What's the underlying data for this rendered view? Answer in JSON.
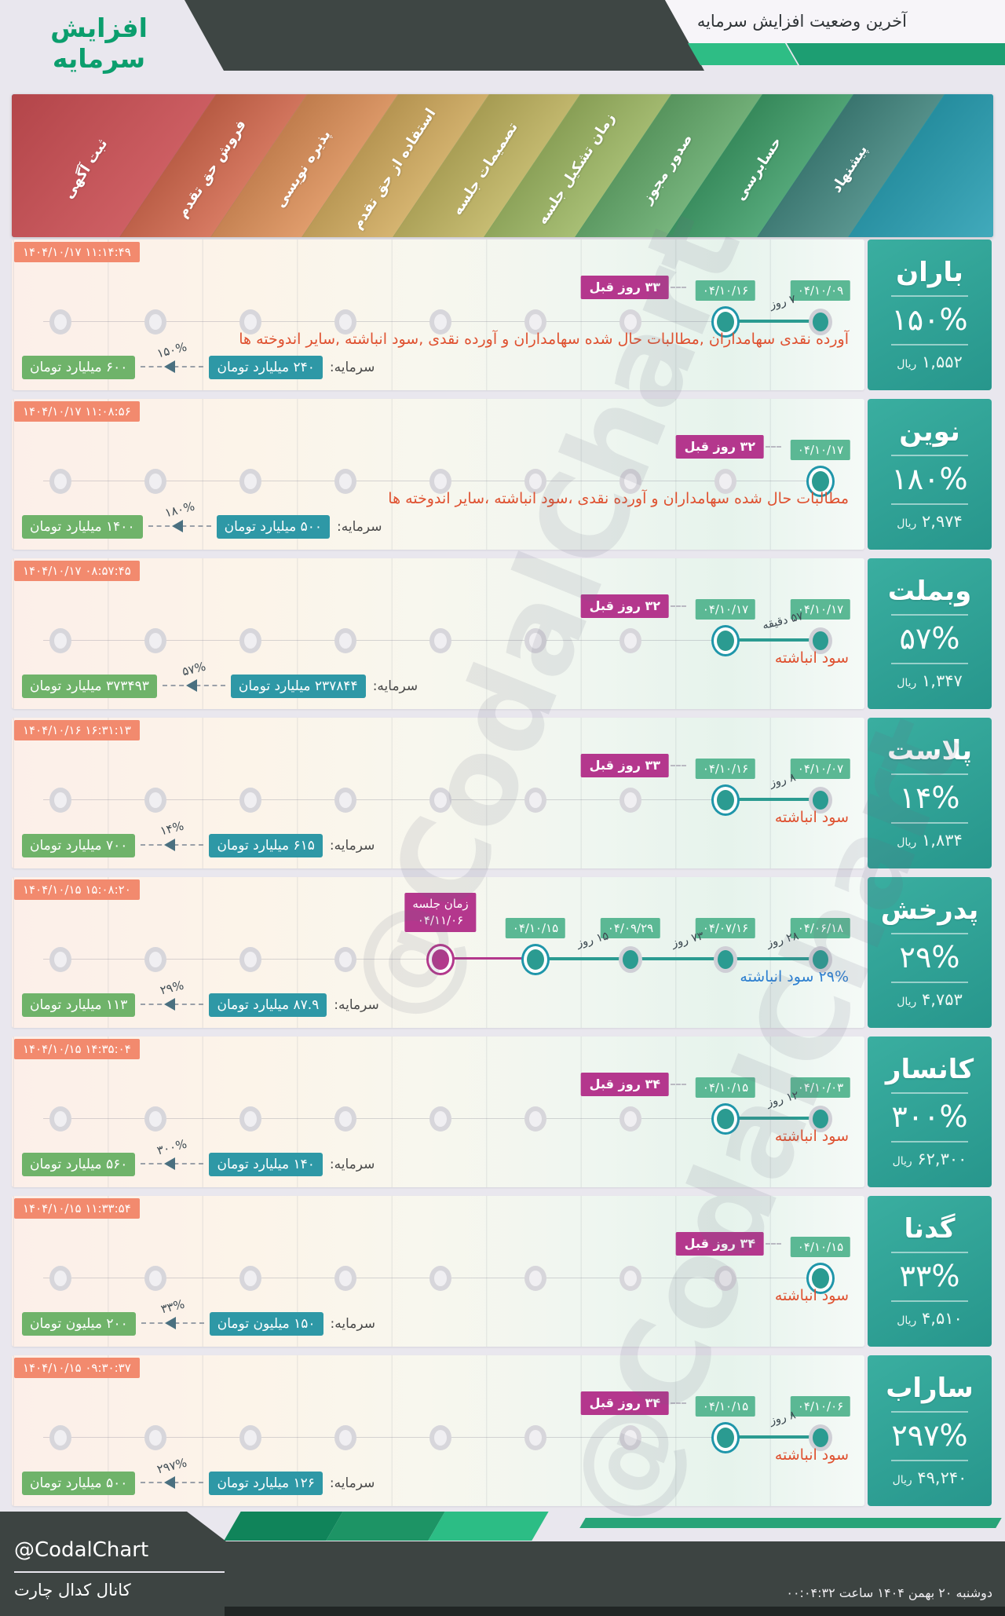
{
  "header": {
    "window_title": "آخرین وضعیت افزایش سرمایه",
    "main_title": "افزایش سرمایه"
  },
  "stages": [
    {
      "label": "ثبت آگهی",
      "color": "#c7494e"
    },
    {
      "label": "فروش حق تقدم",
      "color": "#d2684d"
    },
    {
      "label": "پذیره نویسی",
      "color": "#dc8f58"
    },
    {
      "label": "استفاده از حق تقدم",
      "color": "#d0aa5d"
    },
    {
      "label": "تصمیمات جلسه",
      "color": "#bfb35f"
    },
    {
      "label": "زمان تشکیل جلسه",
      "color": "#9cb662"
    },
    {
      "label": "صدور مجوز",
      "color": "#64aa6b"
    },
    {
      "label": "حسابرسی",
      "color": "#3e9d68"
    },
    {
      "label": "پیشنهاد",
      "color": "#42867f"
    },
    {
      "label": "",
      "color": "#2ba2b6"
    }
  ],
  "shared": {
    "capital_label": "سرمایه:",
    "rial_unit": "ریال"
  },
  "rows": [
    {
      "timestamp": "۱۴۰۴/۱۰/۱۷ ۱۱:۱۴:۴۹",
      "company": "باران",
      "percent": "۱۵۰%",
      "price": "۱,۵۵۲",
      "description": "آورده نقدی سهامداران ,مطالبات حال شده سهامداران و آورده نقدی ,سود انباشته ,سایر اندوخته ها",
      "desc_color": "#df5130",
      "capital": {
        "old": "۲۴۰ میلیارد تومان",
        "new": "۶۰۰ میلیارد تومان",
        "percent": "۱۵۰%"
      },
      "dots": [
        {
          "col": 0,
          "date": "۰۴/۱۰/۰۹",
          "kind": "plain"
        },
        {
          "col": 1,
          "date": "۰۴/۱۰/۱۶",
          "kind": "current",
          "ago": "۳۳ روز قبل"
        }
      ],
      "gaps": [
        {
          "a": 0,
          "b": 1,
          "label": "۷ روز"
        }
      ]
    },
    {
      "timestamp": "۱۴۰۴/۱۰/۱۷ ۱۱:۰۸:۵۶",
      "company": "نوین",
      "percent": "۱۸۰%",
      "price": "۲,۹۷۴",
      "description": "مطالبات حال شده سهامداران و آورده نقدی ،سود انباشته ،سایر اندوخته ها",
      "desc_color": "#df5130",
      "capital": {
        "old": "۵۰۰ میلیارد تومان",
        "new": "۱۴۰۰ میلیارد تومان",
        "percent": "۱۸۰%"
      },
      "dots": [
        {
          "col": 0,
          "date": "۰۴/۱۰/۱۷",
          "kind": "current",
          "ago": "۳۲ روز قبل"
        }
      ],
      "gaps": []
    },
    {
      "timestamp": "۱۴۰۴/۱۰/۱۷ ۰۸:۵۷:۴۵",
      "company": "وبملت",
      "percent": "۵۷%",
      "price": "۱,۳۴۷",
      "description": "سود انباشته",
      "desc_color": "#df5130",
      "capital": {
        "old": "۲۳۷۸۴۴ میلیارد تومان",
        "new": "۳۷۳۴۹۳ میلیارد تومان",
        "percent": "۵۷%"
      },
      "dots": [
        {
          "col": 0,
          "date": "۰۴/۱۰/۱۷",
          "kind": "plain"
        },
        {
          "col": 1,
          "date": "۰۴/۱۰/۱۷",
          "kind": "current",
          "ago": "۳۲ روز قبل"
        }
      ],
      "gaps": [
        {
          "a": 0,
          "b": 1,
          "label": "۵۷ دقیقه"
        }
      ]
    },
    {
      "timestamp": "۱۴۰۴/۱۰/۱۶ ۱۶:۳۱:۱۳",
      "company": "پلاست",
      "percent": "۱۴%",
      "price": "۱,۸۳۴",
      "description": "سود انباشته",
      "desc_color": "#df5130",
      "capital": {
        "old": "۶۱۵ میلیارد تومان",
        "new": "۷۰۰ میلیارد تومان",
        "percent": "۱۴%"
      },
      "dots": [
        {
          "col": 0,
          "date": "۰۴/۱۰/۰۷",
          "kind": "plain"
        },
        {
          "col": 1,
          "date": "۰۴/۱۰/۱۶",
          "kind": "current",
          "ago": "۳۳ روز قبل"
        }
      ],
      "gaps": [
        {
          "a": 0,
          "b": 1,
          "label": "۸ روز"
        }
      ]
    },
    {
      "timestamp": "۱۴۰۴/۱۰/۱۵ ۱۵:۰۸:۲۰",
      "company": "پدرخش",
      "percent": "۲۹%",
      "price": "۴,۷۵۳",
      "description": "۲۹% سود انباشته",
      "desc_color": "#2d7fd0",
      "capital": {
        "old": "۸۷.۹ میلیارد تومان",
        "new": "۱۱۳ میلیارد تومان",
        "percent": "۲۹%"
      },
      "dots": [
        {
          "col": 0,
          "date": "۰۴/۰۶/۱۸",
          "kind": "plain"
        },
        {
          "col": 1,
          "date": "۰۴/۰۷/۱۶",
          "kind": "plain"
        },
        {
          "col": 2,
          "date": "۰۴/۰۹/۲۹",
          "kind": "plain"
        },
        {
          "col": 3,
          "date": "۰۴/۱۰/۱۵",
          "kind": "current"
        },
        {
          "col": 4,
          "date": "۰۴/۱۱/۰۶",
          "kind": "meeting",
          "meeting_label": "زمان جلسه"
        }
      ],
      "gaps": [
        {
          "a": 0,
          "b": 1,
          "label": "۲۸ روز"
        },
        {
          "a": 1,
          "b": 2,
          "label": "۷۳ روز"
        },
        {
          "a": 2,
          "b": 3,
          "label": "۱۵ روز"
        }
      ]
    },
    {
      "timestamp": "۱۴۰۴/۱۰/۱۵ ۱۴:۳۵:۰۴",
      "company": "کانسار",
      "percent": "۳۰۰%",
      "price": "۶۲,۳۰۰",
      "description": "سود انباشته",
      "desc_color": "#df5130",
      "capital": {
        "old": "۱۴۰ میلیارد تومان",
        "new": "۵۶۰ میلیارد تومان",
        "percent": "۳۰۰%"
      },
      "dots": [
        {
          "col": 0,
          "date": "۰۴/۱۰/۰۳",
          "kind": "plain"
        },
        {
          "col": 1,
          "date": "۰۴/۱۰/۱۵",
          "kind": "current",
          "ago": "۳۴ روز قبل"
        }
      ],
      "gaps": [
        {
          "a": 0,
          "b": 1,
          "label": "۱۲ روز"
        }
      ]
    },
    {
      "timestamp": "۱۴۰۴/۱۰/۱۵ ۱۱:۳۳:۵۴",
      "company": "گدنا",
      "percent": "۳۳%",
      "price": "۴,۵۱۰",
      "description": "سود انباشته",
      "desc_color": "#df5130",
      "capital": {
        "old": "۱۵۰ میلیون تومان",
        "new": "۲۰۰ میلیون تومان",
        "percent": "۳۳%"
      },
      "dots": [
        {
          "col": 0,
          "date": "۰۴/۱۰/۱۵",
          "kind": "current",
          "ago": "۳۴ روز قبل"
        }
      ],
      "gaps": []
    },
    {
      "timestamp": "۱۴۰۴/۱۰/۱۵ ۰۹:۳۰:۳۷",
      "company": "ساراب",
      "percent": "۲۹۷%",
      "price": "۴۹,۲۴۰",
      "description": "سود انباشته",
      "desc_color": "#df5130",
      "capital": {
        "old": "۱۲۶ میلیارد تومان",
        "new": "۵۰۰ میلیارد تومان",
        "percent": "۲۹۷%"
      },
      "dots": [
        {
          "col": 0,
          "date": "۰۴/۱۰/۰۶",
          "kind": "plain"
        },
        {
          "col": 1,
          "date": "۰۴/۱۰/۱۵",
          "kind": "current",
          "ago": "۳۴ روز قبل"
        }
      ],
      "gaps": [
        {
          "a": 0,
          "b": 1,
          "label": "۸ روز"
        }
      ]
    }
  ],
  "footer": {
    "handle": "@CodalChart",
    "channel": "کانال کدال چارت",
    "datetime": "دوشنبه ۲۰ بهمن ۱۴۰۴ ساعت ۰۰:۰۴:۳۲"
  },
  "watermark": "@CodalChart"
}
